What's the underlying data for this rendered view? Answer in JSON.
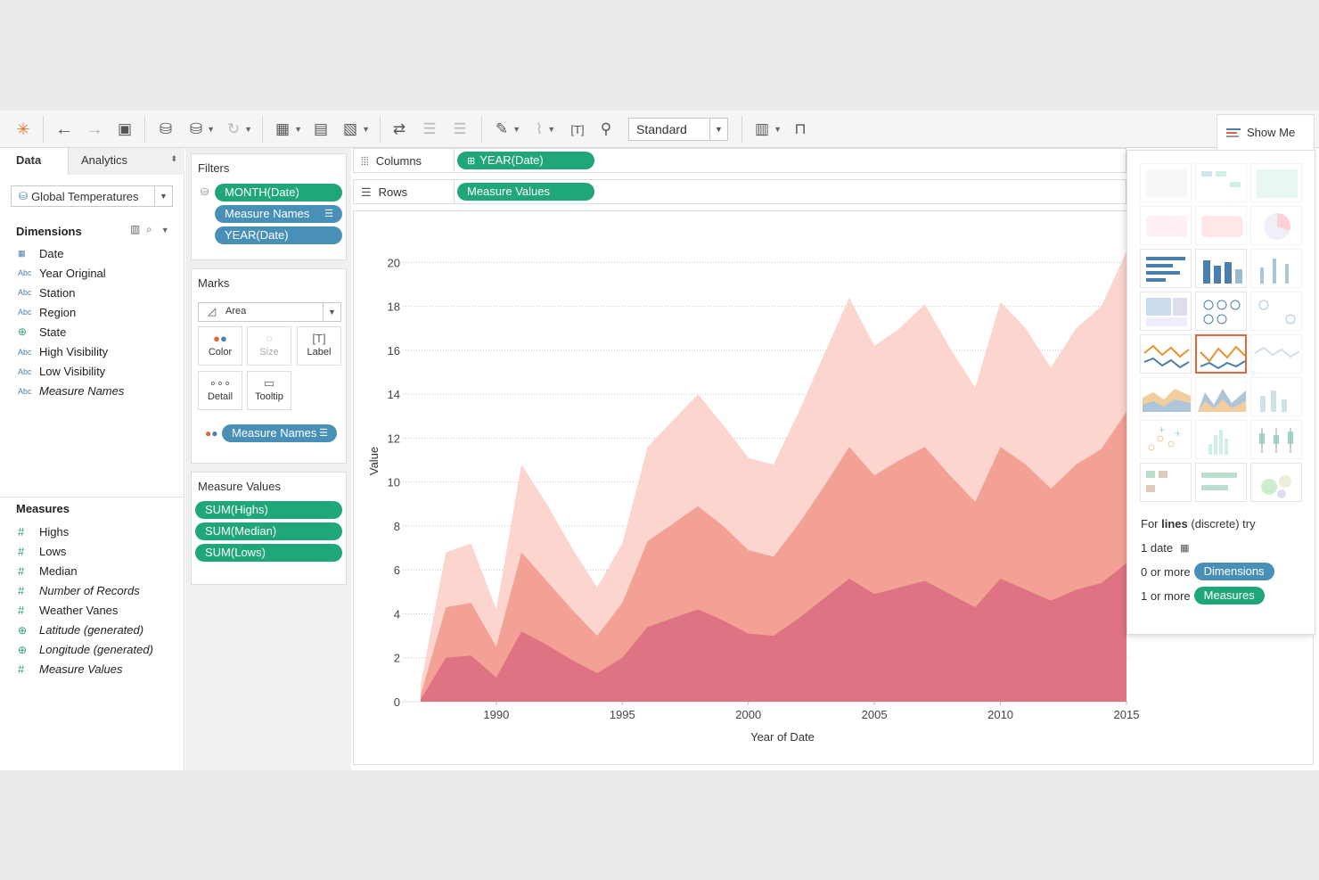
{
  "toolbar": {
    "standard_label": "Standard",
    "showme_label": "Show Me"
  },
  "data_pane": {
    "tabs": [
      "Data",
      "Analytics"
    ],
    "datasource": "Global Temperatures",
    "dimensions_label": "Dimensions",
    "dimensions": [
      {
        "label": "Date",
        "type": "date"
      },
      {
        "label": "Year Original",
        "type": "Abc"
      },
      {
        "label": "Station",
        "type": "Abc"
      },
      {
        "label": "Region",
        "type": "Abc"
      },
      {
        "label": "State",
        "type": "geo"
      },
      {
        "label": "High Visibility",
        "type": "Abc"
      },
      {
        "label": "Low Visibility",
        "type": "Abc"
      },
      {
        "label": "Measure Names",
        "type": "Abc",
        "italic": true
      }
    ],
    "measures_label": "Measures",
    "measures": [
      {
        "label": "Highs",
        "type": "num"
      },
      {
        "label": "Lows",
        "type": "num"
      },
      {
        "label": "Median",
        "type": "num"
      },
      {
        "label": "Number of Records",
        "type": "num",
        "italic": true
      },
      {
        "label": "Weather Vanes",
        "type": "num"
      },
      {
        "label": "Latitude (generated)",
        "type": "geo",
        "italic": true
      },
      {
        "label": "Longitude (generated)",
        "type": "geo",
        "italic": true
      },
      {
        "label": "Measure Values",
        "type": "num",
        "italic": true
      }
    ]
  },
  "filters": {
    "title": "Filters",
    "pills": [
      "MONTH(Date)",
      "Measure Names",
      "YEAR(Date)"
    ]
  },
  "marks": {
    "title": "Marks",
    "mark_type": "Area",
    "buttons": [
      "Color",
      "Size",
      "Label",
      "Detail",
      "Tooltip"
    ],
    "color_pill": "Measure Names"
  },
  "measure_values": {
    "title": "Measure Values",
    "pills": [
      "SUM(Highs)",
      "SUM(Median)",
      "SUM(Lows)"
    ]
  },
  "shelves": {
    "columns_label": "Columns",
    "columns_pill": "YEAR(Date)",
    "rows_label": "Rows",
    "rows_pill": "Measure Values"
  },
  "show_me": {
    "hint_prefix": "For ",
    "hint_bold": "lines",
    "hint_suffix": " (discrete) try",
    "req1": "1 date",
    "req2_prefix": "0 or more",
    "req2_pill": "Dimensions",
    "req3_prefix": "1 or more",
    "req3_pill": "Measures"
  },
  "colors": {
    "green_pill": "#1fa67a",
    "blue_pill": "#4890b8",
    "highs": "#fcd5cf",
    "median": "#f4a195",
    "lows": "#de7383",
    "selected": "#e2683c"
  },
  "chart_data": {
    "type": "area",
    "stacked": false,
    "xlabel": "Year of Date",
    "ylabel": "Value",
    "ylim": [
      0,
      20.5
    ],
    "yticks": [
      0,
      2,
      4,
      6,
      8,
      10,
      12,
      14,
      16,
      18,
      20
    ],
    "xticks": [
      1990,
      1995,
      2000,
      2005,
      2010,
      2015
    ],
    "gridlines": "horizontal dotted",
    "x": [
      1987,
      1988,
      1989,
      1990,
      1991,
      1992,
      1993,
      1994,
      1995,
      1996,
      1997,
      1998,
      1999,
      2000,
      2001,
      2002,
      2003,
      2004,
      2005,
      2006,
      2007,
      2008,
      2009,
      2010,
      2011,
      2012,
      2013,
      2014,
      2015
    ],
    "series": [
      {
        "name": "Highs",
        "values": [
          0.8,
          6.8,
          7.2,
          4.2,
          10.8,
          9.0,
          7.0,
          5.2,
          7.2,
          11.6,
          12.8,
          14.0,
          12.6,
          11.1,
          10.8,
          13.2,
          15.8,
          18.4,
          16.2,
          17.0,
          18.1,
          16.1,
          14.3,
          18.2,
          17.0,
          15.2,
          17.0,
          18.0,
          20.5
        ]
      },
      {
        "name": "Median",
        "values": [
          0.3,
          4.3,
          4.5,
          2.5,
          6.8,
          5.5,
          4.2,
          3.0,
          4.5,
          7.3,
          8.1,
          8.9,
          8.0,
          6.9,
          6.6,
          8.1,
          9.8,
          11.6,
          10.3,
          11.0,
          11.6,
          10.3,
          9.1,
          11.6,
          10.8,
          9.7,
          10.8,
          11.5,
          13.2
        ]
      },
      {
        "name": "Lows",
        "values": [
          0.1,
          2.0,
          2.1,
          1.1,
          3.2,
          2.6,
          1.9,
          1.3,
          2.0,
          3.4,
          3.8,
          4.2,
          3.7,
          3.1,
          3.0,
          3.8,
          4.7,
          5.6,
          4.9,
          5.2,
          5.5,
          4.9,
          4.3,
          5.6,
          5.1,
          4.6,
          5.1,
          5.4,
          6.3
        ]
      }
    ]
  }
}
